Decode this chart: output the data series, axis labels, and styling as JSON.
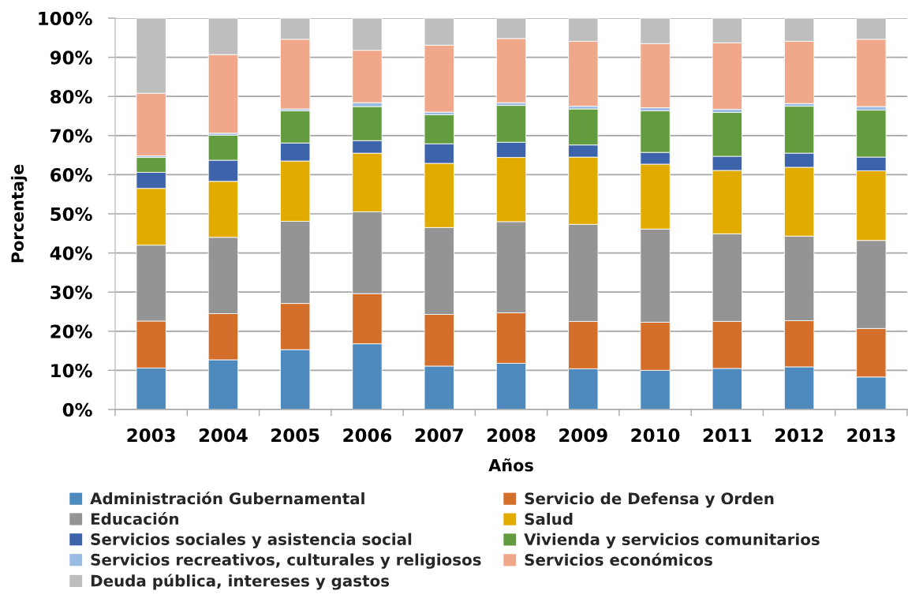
{
  "chart_data": {
    "type": "bar",
    "stacked": true,
    "xlabel": "Años",
    "ylabel": "Porcentaje",
    "categories": [
      "2003",
      "2004",
      "2005",
      "2006",
      "2007",
      "2008",
      "2009",
      "2010",
      "2011",
      "2012",
      "2013"
    ],
    "series": [
      {
        "name": "Administración Gubernamental",
        "color": "#4E8ABE",
        "values": [
          10.6,
          12.7,
          15.3,
          16.8,
          11.1,
          11.8,
          10.4,
          10.0,
          10.5,
          10.9,
          8.3
        ]
      },
      {
        "name": "Servicio de Defensa y Orden",
        "color": "#D36E2B",
        "values": [
          12.0,
          11.8,
          11.8,
          12.8,
          13.2,
          12.9,
          12.1,
          12.3,
          12.0,
          11.8,
          12.4
        ]
      },
      {
        "name": "Educación",
        "color": "#949494",
        "values": [
          19.4,
          19.5,
          21.0,
          20.9,
          22.2,
          23.3,
          24.8,
          23.8,
          22.4,
          21.6,
          22.5
        ]
      },
      {
        "name": "Salud",
        "color": "#E2AB00",
        "values": [
          14.5,
          14.3,
          15.4,
          15.0,
          16.4,
          16.4,
          17.2,
          16.6,
          16.2,
          17.6,
          17.8
        ]
      },
      {
        "name": "Servicios sociales y asistencia social",
        "color": "#3D64AB",
        "values": [
          4.1,
          5.4,
          4.6,
          3.2,
          5.0,
          3.9,
          3.1,
          3.0,
          3.6,
          3.6,
          3.5
        ]
      },
      {
        "name": "Vivienda y servicios comunitarios",
        "color": "#639C3E",
        "values": [
          3.8,
          6.4,
          8.2,
          8.7,
          7.4,
          9.4,
          9.2,
          10.6,
          11.2,
          12.0,
          12.0
        ]
      },
      {
        "name": "Servicios recreativos, culturales y religiosos",
        "color": "#9ABBE2",
        "values": [
          0.4,
          0.5,
          0.5,
          1.0,
          0.7,
          0.7,
          0.7,
          0.8,
          0.8,
          0.7,
          0.9
        ]
      },
      {
        "name": "Servicios económicos",
        "color": "#F1A88A",
        "values": [
          16.0,
          20.1,
          17.8,
          13.4,
          17.1,
          16.4,
          16.6,
          16.4,
          17.0,
          15.9,
          17.2
        ]
      },
      {
        "name": "Deuda pública, intereses y gastos",
        "color": "#BEBEBE",
        "values": [
          19.2,
          9.3,
          5.4,
          8.2,
          6.9,
          5.2,
          5.9,
          6.5,
          6.3,
          5.9,
          5.4
        ]
      }
    ],
    "ylim": [
      0,
      100
    ],
    "yticks": [
      {
        "value": 0,
        "label": "0%"
      },
      {
        "value": 10,
        "label": "10%"
      },
      {
        "value": 20,
        "label": "20%"
      },
      {
        "value": 30,
        "label": "30%"
      },
      {
        "value": 40,
        "label": "40%"
      },
      {
        "value": 50,
        "label": "50%"
      },
      {
        "value": 60,
        "label": "60%"
      },
      {
        "value": 70,
        "label": "70%"
      },
      {
        "value": 80,
        "label": "80%"
      },
      {
        "value": 90,
        "label": "90%"
      },
      {
        "value": 100,
        "label": "100%"
      }
    ],
    "grid": "y",
    "legend": "bottom"
  }
}
